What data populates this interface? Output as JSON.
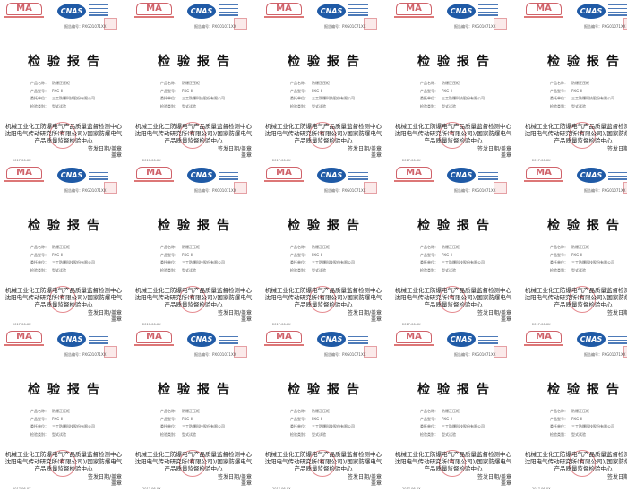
{
  "report": {
    "logo_ma": "MA",
    "logo_cnas": "CNAS",
    "report_no": "报告编号：PXG01071XX",
    "title": "检验报告",
    "fields": [
      {
        "label": "产品名称：",
        "value": "防爆正压柜"
      },
      {
        "label": "产品型号：",
        "value": "PXG-Ⅱ"
      },
      {
        "label": "委托单位：",
        "value": "三工防爆科技股份有限公司"
      },
      {
        "label": "检验类别：",
        "value": "型式试验"
      }
    ],
    "org_line1": "机械工业化工防爆电气产品质量监督检测中心",
    "org_line2": "沈阳电气传动研究所(有限公司)/国家防爆电气产品质量监督检验中心",
    "date": "2017-06-XX",
    "issue_label": "签发日期/盖章",
    "issue_mark": "盖章"
  },
  "grid": {
    "columns": 5,
    "rows": 3
  },
  "colors": {
    "ma_red": "#d0626a",
    "cnas_blue": "#1f5aa6",
    "seal_red": "#e58c91"
  }
}
